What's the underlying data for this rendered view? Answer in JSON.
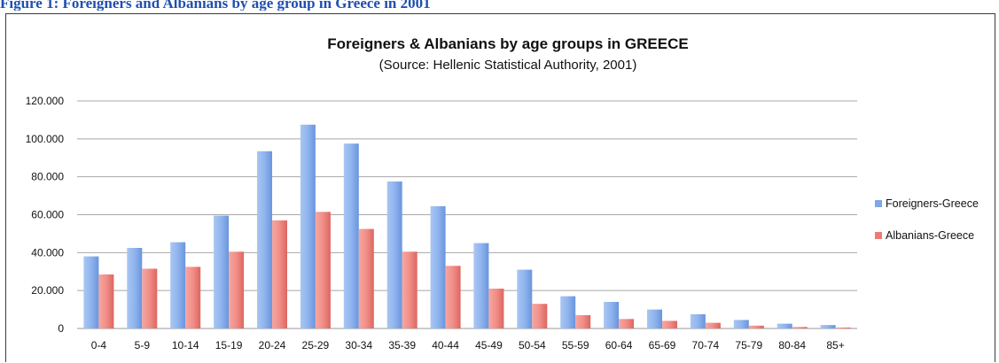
{
  "caption": "Figure 1: Foreigners and Albanians by age group in Greece in 2001",
  "chart_data": {
    "type": "bar",
    "title": "Foreigners & Albanians by age groups in GREECE",
    "subtitle": "(Source: Hellenic Statistical Authority, 2001)",
    "xlabel": "",
    "ylabel": "",
    "categories": [
      "0-4",
      "5-9",
      "10-14",
      "15-19",
      "20-24",
      "25-29",
      "30-34",
      "35-39",
      "40-44",
      "45-49",
      "50-54",
      "55-59",
      "60-64",
      "65-69",
      "70-74",
      "75-79",
      "80-84",
      "85+"
    ],
    "series": [
      {
        "name": "Foreigners-Greece",
        "color": "#7fa8e8",
        "values": [
          38000,
          42500,
          45500,
          59500,
          93500,
          107500,
          97500,
          77500,
          64500,
          45000,
          31000,
          17000,
          14000,
          10000,
          7500,
          4500,
          2500,
          1800
        ]
      },
      {
        "name": "Albanians-Greece",
        "color": "#ee7a74",
        "values": [
          28500,
          31500,
          32500,
          40500,
          57000,
          61500,
          52500,
          40500,
          33000,
          21000,
          13000,
          7000,
          5000,
          4000,
          3000,
          1500,
          800,
          500
        ]
      }
    ],
    "ylim": [
      0,
      120000
    ],
    "yticks": [
      {
        "value": 0,
        "label": "0"
      },
      {
        "value": 20000,
        "label": "20.000"
      },
      {
        "value": 40000,
        "label": "40.000"
      },
      {
        "value": 60000,
        "label": "60.000"
      },
      {
        "value": 80000,
        "label": "80.000"
      },
      {
        "value": 100000,
        "label": "100.000"
      },
      {
        "value": 120000,
        "label": "120.000"
      }
    ],
    "grid": true,
    "legend": "right"
  }
}
